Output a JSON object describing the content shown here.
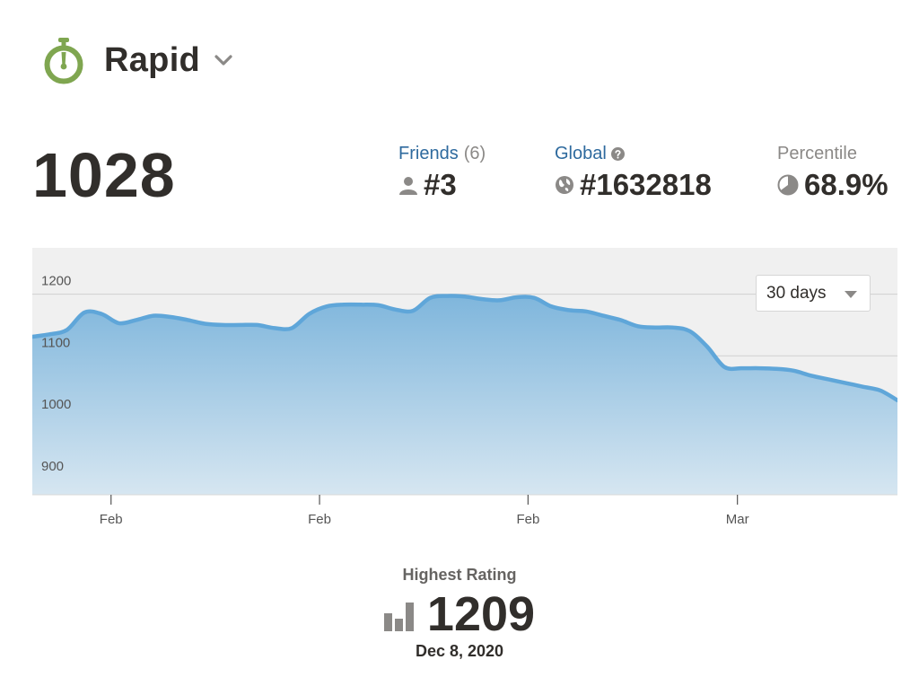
{
  "header": {
    "mode": "Rapid"
  },
  "rating": "1028",
  "stats": {
    "friends": {
      "label": "Friends",
      "count": "(6)",
      "value": "#3"
    },
    "global": {
      "label": "Global",
      "value": "#1632818"
    },
    "percentile": {
      "label": "Percentile",
      "value": "68.9%"
    }
  },
  "range_select": {
    "selected": "30 days"
  },
  "highest": {
    "label": "Highest Rating",
    "value": "1209",
    "date": "Dec 8, 2020"
  },
  "colors": {
    "accent_green": "#7fa650",
    "link_blue": "#2e6a9e",
    "line_blue": "#5fa6d9"
  },
  "chart_data": {
    "type": "area",
    "yticks": [
      900,
      1000,
      1100,
      1200
    ],
    "ylim": [
      875,
      1275
    ],
    "xticks": [
      {
        "label": "Feb",
        "pos": 0.091
      },
      {
        "label": "Feb",
        "pos": 0.332
      },
      {
        "label": "Feb",
        "pos": 0.573
      },
      {
        "label": "Mar",
        "pos": 0.815
      }
    ],
    "values": [
      1131,
      1135,
      1142,
      1170,
      1168,
      1153,
      1158,
      1165,
      1163,
      1158,
      1152,
      1150,
      1150,
      1150,
      1145,
      1145,
      1168,
      1180,
      1183,
      1183,
      1182,
      1175,
      1173,
      1194,
      1197,
      1196,
      1192,
      1190,
      1195,
      1194,
      1180,
      1174,
      1172,
      1165,
      1158,
      1148,
      1146,
      1146,
      1140,
      1115,
      1082,
      1080,
      1080,
      1079,
      1076,
      1068,
      1062,
      1056,
      1050,
      1044,
      1028
    ],
    "grid": true
  }
}
